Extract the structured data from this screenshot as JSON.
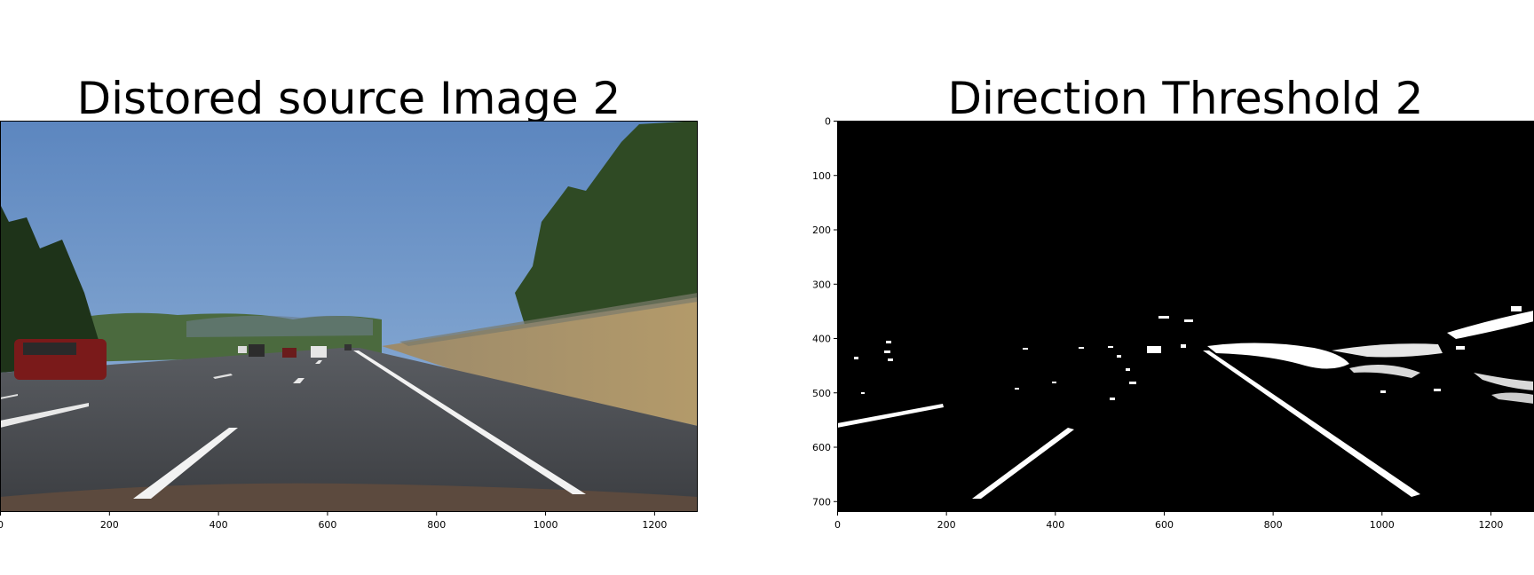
{
  "panels": [
    {
      "title": "Distored source Image 2",
      "image": "color dashcam photo of a highway with lane markings, cars ahead and trees on the right",
      "x_ticks": [
        "0",
        "200",
        "400",
        "600",
        "800",
        "1000",
        "1200"
      ]
    },
    {
      "title": "Direction Threshold 2",
      "image": "binary direction-gradient threshold of the same road: white lane lines and foliage on black",
      "x_ticks": [
        "0",
        "200",
        "400",
        "600",
        "800",
        "1000",
        "1200"
      ],
      "y_ticks": [
        "0",
        "100",
        "200",
        "300",
        "400",
        "500",
        "600",
        "700"
      ]
    }
  ]
}
